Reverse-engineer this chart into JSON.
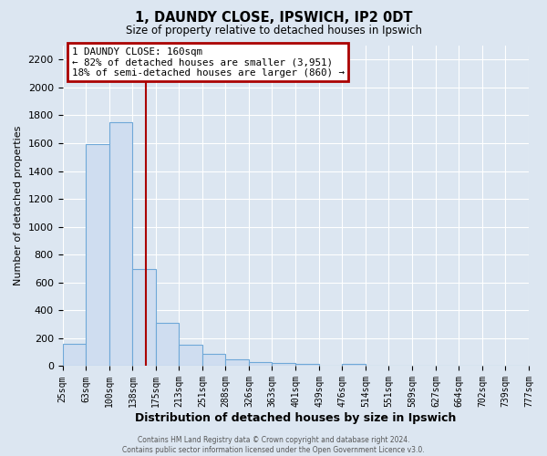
{
  "title": "1, DAUNDY CLOSE, IPSWICH, IP2 0DT",
  "subtitle": "Size of property relative to detached houses in Ipswich",
  "xlabel": "Distribution of detached houses by size in Ipswich",
  "ylabel": "Number of detached properties",
  "bar_color": "#cfddf0",
  "bar_edge_color": "#6fa8d8",
  "background_color": "#dce6f1",
  "grid_color": "#ffffff",
  "bin_edges": [
    25,
    63,
    100,
    138,
    175,
    213,
    251,
    288,
    326,
    363,
    401,
    439,
    476,
    514,
    551,
    589,
    627,
    664,
    702,
    739,
    777
  ],
  "bin_labels": [
    "25sqm",
    "63sqm",
    "100sqm",
    "138sqm",
    "175sqm",
    "213sqm",
    "251sqm",
    "288sqm",
    "326sqm",
    "363sqm",
    "401sqm",
    "439sqm",
    "476sqm",
    "514sqm",
    "551sqm",
    "589sqm",
    "627sqm",
    "664sqm",
    "702sqm",
    "739sqm",
    "777sqm"
  ],
  "bar_heights": [
    160,
    1590,
    1750,
    700,
    310,
    155,
    85,
    50,
    30,
    20,
    18,
    0,
    18,
    0,
    0,
    0,
    0,
    0,
    0,
    0
  ],
  "ylim": [
    0,
    2300
  ],
  "yticks": [
    0,
    200,
    400,
    600,
    800,
    1000,
    1200,
    1400,
    1600,
    1800,
    2000,
    2200
  ],
  "property_line_x": 160,
  "annotation_title": "1 DAUNDY CLOSE: 160sqm",
  "annotation_line1": "← 82% of detached houses are smaller (3,951)",
  "annotation_line2": "18% of semi-detached houses are larger (860) →",
  "annotation_box_color": "#ffffff",
  "annotation_border_color": "#aa0000",
  "footer_line1": "Contains HM Land Registry data © Crown copyright and database right 2024.",
  "footer_line2": "Contains public sector information licensed under the Open Government Licence v3.0."
}
